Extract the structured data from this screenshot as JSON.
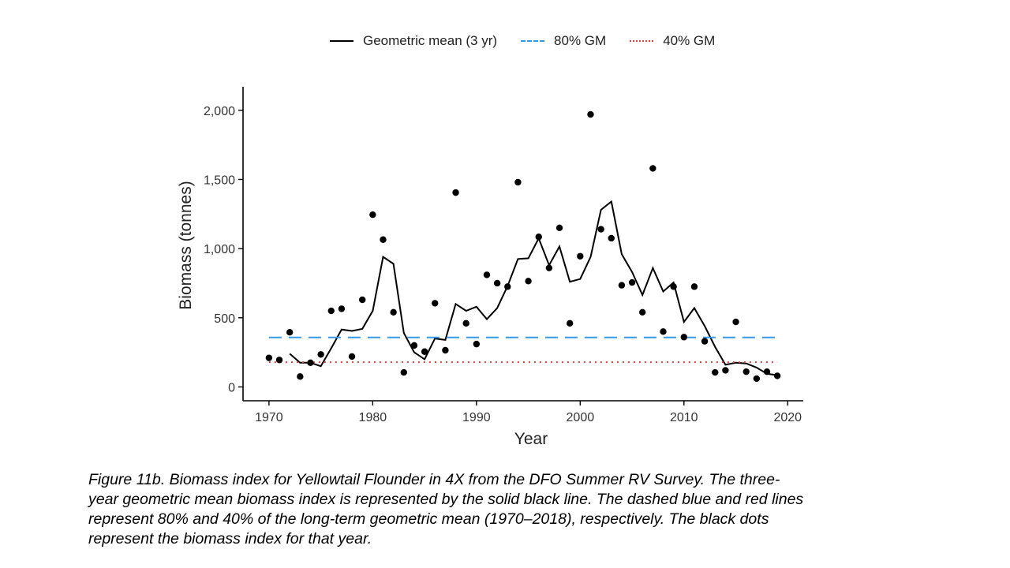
{
  "chart_data": {
    "type": "line",
    "xlabel": "Year",
    "ylabel": "Biomass (tonnes)",
    "xlim": [
      1967.5,
      2021.5
    ],
    "ylim": [
      -100,
      2170
    ],
    "x_ticks": [
      1970,
      1980,
      1990,
      2000,
      2010,
      2020
    ],
    "y_ticks": [
      0,
      500,
      1000,
      1500,
      2000
    ],
    "y_tick_labels": [
      "0",
      "500",
      "1,000",
      "1,500",
      "2,000"
    ],
    "grid": false,
    "legend_placement": "top",
    "series": [
      {
        "name": "Geometric mean (3 yr)",
        "kind": "line",
        "color": "#000000",
        "x": [
          1972,
          1973,
          1974,
          1975,
          1976,
          1977,
          1978,
          1979,
          1980,
          1981,
          1982,
          1983,
          1984,
          1985,
          1986,
          1987,
          1988,
          1989,
          1990,
          1991,
          1992,
          1993,
          1994,
          1995,
          1996,
          1997,
          1998,
          1999,
          2000,
          2001,
          2002,
          2003,
          2004,
          2005,
          2006,
          2007,
          2008,
          2009,
          2010,
          2011,
          2012,
          2013,
          2014,
          2015,
          2016,
          2017,
          2018,
          2019
        ],
        "y": [
          240,
          175,
          175,
          150,
          280,
          415,
          405,
          420,
          550,
          940,
          890,
          390,
          250,
          200,
          350,
          340,
          600,
          550,
          580,
          490,
          570,
          730,
          925,
          930,
          1075,
          880,
          1015,
          760,
          780,
          940,
          1280,
          1340,
          960,
          830,
          665,
          860,
          690,
          755,
          470,
          570,
          440,
          290,
          160,
          175,
          170,
          140,
          95,
          85
        ]
      },
      {
        "name": "80% GM",
        "kind": "line",
        "dash": "dashed",
        "color": "#3399E6",
        "x": [
          1970,
          2019
        ],
        "y": [
          358,
          358
        ]
      },
      {
        "name": "40% GM",
        "kind": "line",
        "dash": "dotted",
        "color": "#E03C3C",
        "x": [
          1970,
          2019
        ],
        "y": [
          179,
          179
        ]
      },
      {
        "name": "",
        "kind": "scatter",
        "color": "#000000",
        "x": [
          1970,
          1971,
          1972,
          1973,
          1974,
          1975,
          1976,
          1977,
          1978,
          1979,
          1980,
          1981,
          1982,
          1983,
          1984,
          1985,
          1986,
          1987,
          1988,
          1989,
          1990,
          1991,
          1992,
          1993,
          1994,
          1995,
          1996,
          1997,
          1998,
          1999,
          2000,
          2001,
          2002,
          2003,
          2004,
          2005,
          2006,
          2007,
          2008,
          2009,
          2010,
          2011,
          2012,
          2013,
          2014,
          2015,
          2016,
          2017,
          2018,
          2019
        ],
        "y": [
          210,
          195,
          395,
          75,
          175,
          235,
          550,
          565,
          220,
          630,
          1245,
          1065,
          540,
          105,
          300,
          255,
          605,
          265,
          1405,
          460,
          310,
          810,
          750,
          725,
          1480,
          765,
          1085,
          860,
          1150,
          460,
          945,
          1970,
          1140,
          1075,
          735,
          755,
          540,
          1580,
          400,
          725,
          360,
          725,
          330,
          105,
          120,
          470,
          110,
          60,
          110,
          80
        ]
      }
    ]
  },
  "legend": {
    "items": [
      {
        "label": "Geometric mean (3 yr)"
      },
      {
        "label": "80% GM"
      },
      {
        "label": "40% GM"
      }
    ]
  },
  "caption": {
    "lines": [
      "Figure 11b. Biomass index for Yellowtail Flounder in 4X from the DFO Summer RV Survey. The three-",
      "year geometric mean biomass index is represented by the solid black line. The dashed blue and red lines",
      "represent 80% and 40% of the long-term geometric mean (1970–2018), respectively. The black dots",
      "represent the biomass index for that year."
    ]
  }
}
